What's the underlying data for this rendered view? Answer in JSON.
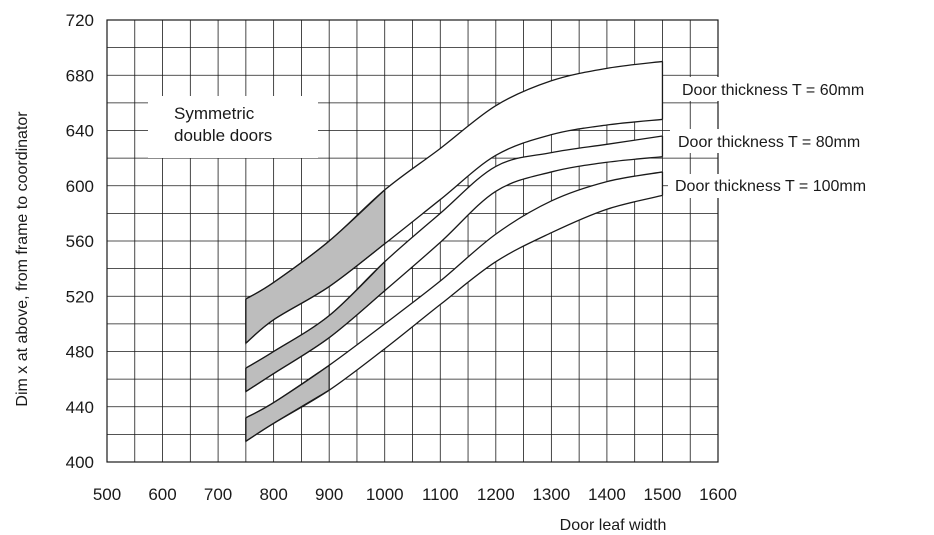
{
  "chart_data": {
    "type": "area",
    "xlabel": "Door leaf width",
    "ylabel": "Dim x at above, from frame to coordinator",
    "xlim": [
      500,
      1600
    ],
    "ylim": [
      400,
      720
    ],
    "x_ticks": [
      500,
      600,
      700,
      800,
      900,
      1000,
      1100,
      1200,
      1300,
      1400,
      1500,
      1600
    ],
    "y_ticks": [
      400,
      440,
      480,
      520,
      560,
      600,
      640,
      680,
      720
    ],
    "x_minor_step": 50,
    "y_minor_step": 20,
    "grid": true,
    "annotation": {
      "line1": "Symmetric",
      "line2": "double doors"
    },
    "colors": {
      "band_fill": "#ffffff",
      "shaded_fill": "#bdbdbd",
      "line": "#1a1a1a"
    },
    "series": [
      {
        "name": "Door thickness T = 60mm",
        "x": [
          750,
          800,
          900,
          1000,
          1100,
          1200,
          1300,
          1400,
          1500
        ],
        "upper": [
          518,
          530,
          560,
          597,
          627,
          658,
          676,
          685,
          690
        ],
        "lower": [
          486,
          503,
          527,
          558,
          590,
          622,
          637,
          644,
          648
        ],
        "shaded_x": [
          750,
          1000
        ]
      },
      {
        "name": "Door thickness T = 80mm",
        "x": [
          750,
          800,
          900,
          1000,
          1100,
          1200,
          1300,
          1400,
          1500
        ],
        "upper": [
          468,
          480,
          506,
          545,
          580,
          614,
          624,
          630,
          636
        ],
        "lower": [
          451,
          464,
          490,
          524,
          559,
          596,
          610,
          617,
          621
        ],
        "shaded_x": [
          750,
          1000
        ]
      },
      {
        "name": "Door thickness T = 100mm",
        "x": [
          750,
          800,
          900,
          1000,
          1100,
          1200,
          1300,
          1400,
          1500
        ],
        "upper": [
          432,
          443,
          470,
          500,
          531,
          565,
          589,
          603,
          610
        ],
        "lower": [
          415,
          428,
          452,
          482,
          514,
          545,
          566,
          583,
          593
        ],
        "shaded_x": [
          750,
          900
        ]
      }
    ]
  }
}
